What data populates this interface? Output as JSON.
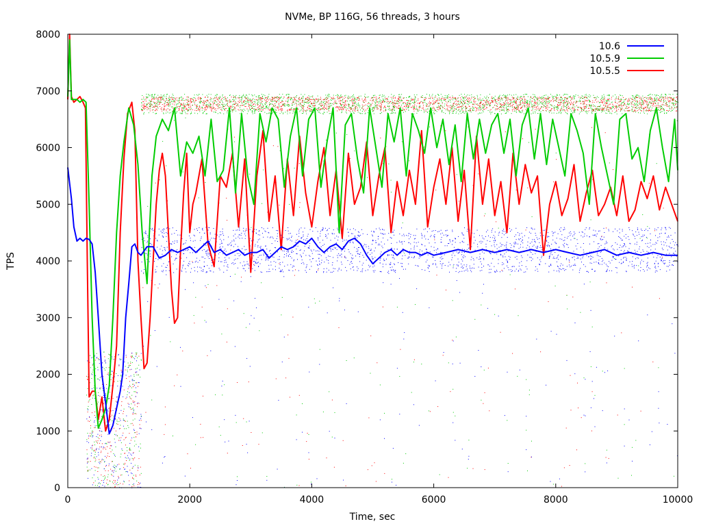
{
  "chart_data": {
    "type": "line",
    "title": "NVMe, BP 116G, 56 threads, 3 hours",
    "xlabel": "Time, sec",
    "ylabel": "TPS",
    "xlim": [
      0,
      10000
    ],
    "ylim": [
      0,
      8000
    ],
    "xticks": [
      0,
      2000,
      4000,
      6000,
      8000,
      10000
    ],
    "yticks": [
      0,
      1000,
      2000,
      3000,
      4000,
      5000,
      6000,
      7000,
      8000
    ],
    "legend_position": "top-right",
    "grid": false,
    "series": [
      {
        "name": "10.6",
        "color": "#0000ff",
        "scatter_band": [
          3800,
          4600
        ],
        "x": [
          0,
          60,
          100,
          150,
          200,
          250,
          300,
          350,
          400,
          450,
          500,
          560,
          620,
          680,
          740,
          800,
          860,
          900,
          950,
          1000,
          1050,
          1100,
          1150,
          1200,
          1300,
          1400,
          1500,
          1600,
          1700,
          1800,
          1900,
          2000,
          2100,
          2200,
          2300,
          2400,
          2500,
          2600,
          2700,
          2800,
          2900,
          3000,
          3100,
          3200,
          3300,
          3400,
          3500,
          3600,
          3700,
          3800,
          3900,
          4000,
          4100,
          4200,
          4300,
          4400,
          4500,
          4600,
          4700,
          4800,
          4900,
          5000,
          5100,
          5200,
          5300,
          5400,
          5500,
          5600,
          5700,
          5800,
          5900,
          6000,
          6200,
          6400,
          6600,
          6800,
          7000,
          7200,
          7400,
          7600,
          7800,
          8000,
          8200,
          8400,
          8600,
          8800,
          9000,
          9200,
          9400,
          9600,
          9800,
          10000
        ],
        "y": [
          5650,
          5100,
          4600,
          4350,
          4400,
          4350,
          4400,
          4380,
          4300,
          3800,
          3000,
          2000,
          1500,
          950,
          1100,
          1400,
          1700,
          2000,
          3000,
          3600,
          4250,
          4300,
          4150,
          4100,
          4250,
          4250,
          4050,
          4100,
          4200,
          4150,
          4200,
          4250,
          4150,
          4250,
          4350,
          4150,
          4200,
          4100,
          4150,
          4200,
          4100,
          4150,
          4150,
          4200,
          4050,
          4150,
          4250,
          4200,
          4250,
          4350,
          4300,
          4400,
          4250,
          4150,
          4250,
          4300,
          4200,
          4350,
          4400,
          4300,
          4100,
          3950,
          4050,
          4150,
          4200,
          4100,
          4200,
          4150,
          4150,
          4100,
          4150,
          4100,
          4150,
          4200,
          4150,
          4200,
          4150,
          4200,
          4150,
          4200,
          4150,
          4200,
          4150,
          4100,
          4150,
          4200,
          4100,
          4150,
          4100,
          4150,
          4100,
          4100
        ]
      },
      {
        "name": "10.5.9",
        "color": "#00cc00",
        "scatter_band": [
          6600,
          6950
        ],
        "x": [
          0,
          30,
          60,
          100,
          150,
          200,
          250,
          300,
          350,
          400,
          450,
          500,
          560,
          620,
          680,
          740,
          800,
          860,
          920,
          1000,
          1080,
          1150,
          1220,
          1300,
          1380,
          1450,
          1550,
          1650,
          1750,
          1850,
          1950,
          2050,
          2150,
          2250,
          2350,
          2450,
          2550,
          2650,
          2750,
          2850,
          2950,
          3050,
          3150,
          3250,
          3350,
          3450,
          3550,
          3650,
          3750,
          3850,
          3950,
          4050,
          4150,
          4250,
          4350,
          4450,
          4550,
          4650,
          4750,
          4850,
          4950,
          5050,
          5150,
          5250,
          5350,
          5450,
          5550,
          5650,
          5750,
          5850,
          5950,
          6050,
          6150,
          6250,
          6350,
          6450,
          6550,
          6650,
          6750,
          6850,
          6950,
          7050,
          7150,
          7250,
          7350,
          7450,
          7550,
          7650,
          7750,
          7850,
          7950,
          8050,
          8150,
          8250,
          8350,
          8450,
          8550,
          8650,
          8750,
          8850,
          8950,
          9050,
          9150,
          9250,
          9350,
          9450,
          9550,
          9650,
          9750,
          9850,
          9950,
          10000
        ],
        "y": [
          6900,
          7900,
          6850,
          6850,
          6850,
          6800,
          6850,
          6800,
          5000,
          3000,
          1700,
          1050,
          1200,
          1400,
          1800,
          3000,
          4500,
          5500,
          6100,
          6700,
          6400,
          5700,
          4500,
          3600,
          5500,
          6200,
          6500,
          6300,
          6700,
          5500,
          6100,
          5900,
          6200,
          5500,
          6500,
          5400,
          5600,
          6700,
          5200,
          6600,
          5500,
          5000,
          6600,
          6100,
          6700,
          6500,
          5300,
          6200,
          6700,
          5500,
          6500,
          6700,
          5300,
          6100,
          6700,
          4500,
          6400,
          6600,
          5800,
          5200,
          6700,
          6000,
          5300,
          6600,
          6100,
          6700,
          5500,
          6600,
          6300,
          5900,
          6700,
          6000,
          6500,
          5700,
          6400,
          5400,
          6600,
          5800,
          6500,
          5900,
          6400,
          6600,
          5900,
          6500,
          5500,
          6400,
          6700,
          5800,
          6600,
          5700,
          6500,
          6000,
          5500,
          6600,
          6300,
          5900,
          5000,
          6600,
          6000,
          5500,
          5000,
          6500,
          6600,
          5800,
          6000,
          5400,
          6300,
          6700,
          6000,
          5400,
          6500,
          5600
        ]
      },
      {
        "name": "10.5.5",
        "color": "#ff0000",
        "scatter_band": [
          6650,
          6900
        ],
        "x": [
          0,
          30,
          60,
          100,
          150,
          200,
          250,
          290,
          320,
          350,
          400,
          450,
          500,
          560,
          620,
          680,
          740,
          800,
          860,
          920,
          980,
          1050,
          1100,
          1150,
          1200,
          1250,
          1300,
          1350,
          1400,
          1450,
          1500,
          1550,
          1600,
          1650,
          1700,
          1750,
          1800,
          1850,
          1900,
          1950,
          2000,
          2050,
          2100,
          2200,
          2300,
          2400,
          2500,
          2600,
          2700,
          2800,
          2900,
          3000,
          3100,
          3200,
          3300,
          3400,
          3500,
          3600,
          3700,
          3800,
          3900,
          4000,
          4100,
          4200,
          4300,
          4400,
          4500,
          4600,
          4700,
          4800,
          4900,
          5000,
          5100,
          5200,
          5300,
          5400,
          5500,
          5600,
          5700,
          5800,
          5900,
          6000,
          6100,
          6200,
          6300,
          6400,
          6500,
          6600,
          6700,
          6800,
          6900,
          7000,
          7100,
          7200,
          7300,
          7400,
          7500,
          7600,
          7700,
          7800,
          7900,
          8000,
          8100,
          8200,
          8300,
          8400,
          8500,
          8600,
          8700,
          8800,
          8900,
          9000,
          9100,
          9200,
          9300,
          9400,
          9500,
          9600,
          9700,
          9800,
          9900,
          10000
        ],
        "y": [
          6850,
          8000,
          6900,
          6800,
          6850,
          6900,
          6800,
          6700,
          4000,
          1600,
          1700,
          1700,
          1200,
          1600,
          1000,
          1200,
          1800,
          2500,
          4500,
          5800,
          6600,
          6800,
          6300,
          4000,
          3000,
          2100,
          2200,
          3000,
          4000,
          5000,
          5600,
          5900,
          5500,
          4500,
          3500,
          2900,
          3000,
          4200,
          5200,
          5900,
          4500,
          5000,
          5200,
          5800,
          4300,
          3900,
          5500,
          5300,
          5900,
          4600,
          5800,
          3800,
          5500,
          6300,
          4700,
          5500,
          4200,
          5800,
          4800,
          6200,
          5200,
          4600,
          5400,
          6000,
          4800,
          5600,
          4400,
          5900,
          5000,
          5300,
          6100,
          4800,
          5500,
          6000,
          4500,
          5400,
          4800,
          5600,
          5000,
          6300,
          4600,
          5300,
          5800,
          5000,
          6000,
          4700,
          5600,
          4200,
          6200,
          5000,
          5800,
          4800,
          5400,
          4500,
          5900,
          5000,
          5700,
          5200,
          5500,
          4100,
          5000,
          5400,
          4800,
          5100,
          5700,
          4700,
          5200,
          5600,
          4800,
          5000,
          5300,
          4800,
          5500,
          4700,
          4900,
          5400,
          5100,
          5500,
          4900,
          5300,
          5000,
          4700
        ]
      }
    ]
  }
}
